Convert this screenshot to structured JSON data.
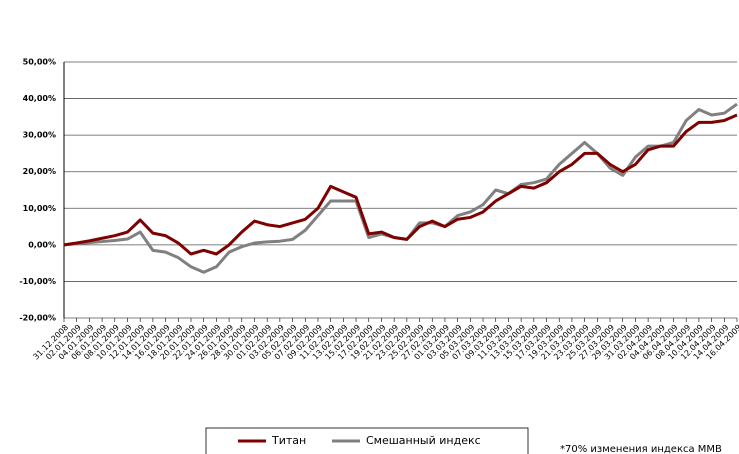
{
  "chart_data": {
    "type": "line",
    "categories": [
      "31.12.2008",
      "02.01.2009",
      "04.01.2009",
      "06.01.2009",
      "08.01.2009",
      "10.01.2009",
      "12.01.2009",
      "14.01.2009",
      "16.01.2009",
      "18.01.2009",
      "20.01.2009",
      "22.01.2009",
      "24.01.2009",
      "26.01.2009",
      "28.01.2009",
      "30.01.2009",
      "01.02.2009",
      "03.02.2009",
      "05.02.2009",
      "07.02.2009",
      "09.02.2009",
      "11.02.2009",
      "13.02.2009",
      "15.02.2009",
      "17.02.2009",
      "19.02.2009",
      "21.02.2009",
      "23.02.2009",
      "25.02.2009",
      "27.02.2009",
      "01.03.2009",
      "03.03.2009",
      "05.03.2009",
      "07.03.2009",
      "09.03.2009",
      "11.03.2009",
      "13.03.2009",
      "15.03.2009",
      "17.03.2009",
      "19.03.2009",
      "21.03.2009",
      "23.03.2009",
      "25.03.2009",
      "27.03.2009",
      "29.03.2009",
      "31.03.2009",
      "02.04.2009",
      "04.04.2009",
      "06.04.2009",
      "08.04.2009",
      "10.04.2009",
      "12.04.2009",
      "14.04.2009",
      "16.04.2009"
    ],
    "series": [
      {
        "name": "Титан",
        "color": "#7f0000",
        "values": [
          0,
          0.5,
          1.1,
          1.8,
          2.5,
          3.5,
          6.8,
          3.2,
          2.5,
          0.5,
          -2.5,
          -1.5,
          -2.5,
          0,
          3.5,
          6.5,
          5.5,
          5,
          6,
          7,
          10,
          16,
          14.5,
          13,
          3,
          3.5,
          2,
          1.5,
          5,
          6.5,
          5,
          7,
          7.5,
          9,
          12,
          14,
          16,
          15.5,
          17,
          20,
          22,
          25,
          25,
          22,
          20,
          22,
          26,
          27,
          27,
          31,
          33.5,
          33.5,
          34,
          35.5
        ]
      },
      {
        "name": "Смешанный индекс",
        "color": "#808080",
        "values": [
          0,
          0.3,
          0.6,
          0.9,
          1.2,
          1.6,
          3.5,
          -1.5,
          -2,
          -3.5,
          -6,
          -7.5,
          -6,
          -2,
          -0.5,
          0.5,
          0.8,
          1,
          1.5,
          4,
          8,
          12,
          12,
          12,
          2,
          3,
          2,
          1.5,
          6,
          6,
          5,
          8,
          9,
          11,
          15,
          14,
          16.5,
          17,
          18,
          22,
          25,
          28,
          25,
          21,
          19,
          24,
          27,
          27,
          28,
          34,
          37,
          35.5,
          36,
          38.5
        ]
      }
    ],
    "ylim": [
      -20,
      50
    ],
    "yticks": [
      {
        "value": -20,
        "label": "-20,00%"
      },
      {
        "value": -10,
        "label": "-10,00%"
      },
      {
        "value": 0,
        "label": "0,00%"
      },
      {
        "value": 10,
        "label": "10,00%"
      },
      {
        "value": 20,
        "label": "20,00%"
      },
      {
        "value": 30,
        "label": "30,00%"
      },
      {
        "value": 40,
        "label": "40,00%"
      },
      {
        "value": 50,
        "label": "50,00%"
      }
    ],
    "grid": true,
    "footnote": "*70% изменения индекса ММВ"
  }
}
